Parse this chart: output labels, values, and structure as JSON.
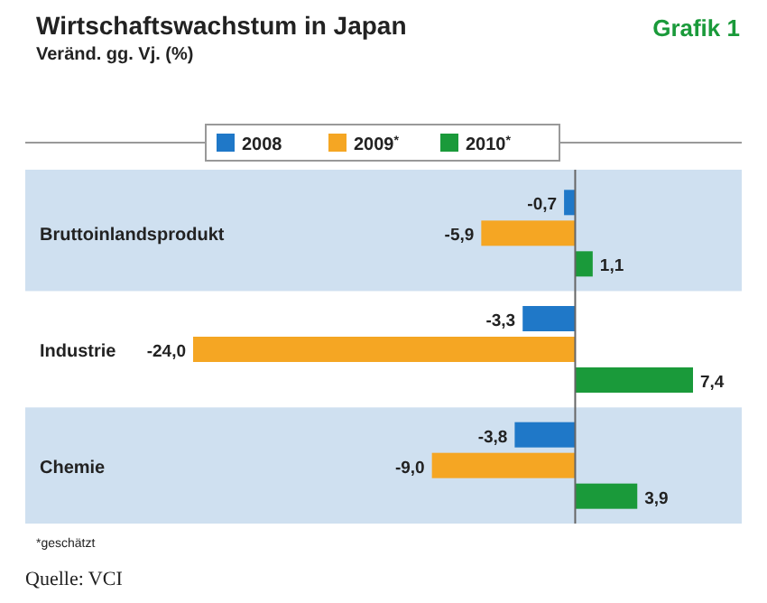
{
  "chart_data": {
    "type": "bar",
    "orientation": "horizontal",
    "title": "Wirtschaftswachstum in Japan",
    "subtitle": "Veränd. gg. Vj. (%)",
    "categories": [
      "Bruttoinlandsprodukt",
      "Industrie",
      "Chemie"
    ],
    "series": [
      {
        "name": "2008",
        "color": "#1f78c8",
        "values": [
          -0.7,
          -3.3,
          -3.8
        ],
        "value_labels": [
          "-0,7",
          "-3,3",
          "-3,8"
        ]
      },
      {
        "name": "2009$^{*}$",
        "color": "#f5a623",
        "values": [
          -5.9,
          -24.0,
          -9.0
        ],
        "value_labels": [
          "-5,9",
          "-24,0",
          "-9,0"
        ]
      },
      {
        "name": "2010$^{*}$",
        "color": "#1a9a3a",
        "values": [
          1.1,
          7.4,
          3.9
        ],
        "value_labels": [
          "1,1",
          "7,4",
          "3,9"
        ]
      }
    ],
    "legend": "top",
    "annotations": [
      "Grafik 1",
      "*geschätzt",
      "Quelle: VCI"
    ]
  }
}
